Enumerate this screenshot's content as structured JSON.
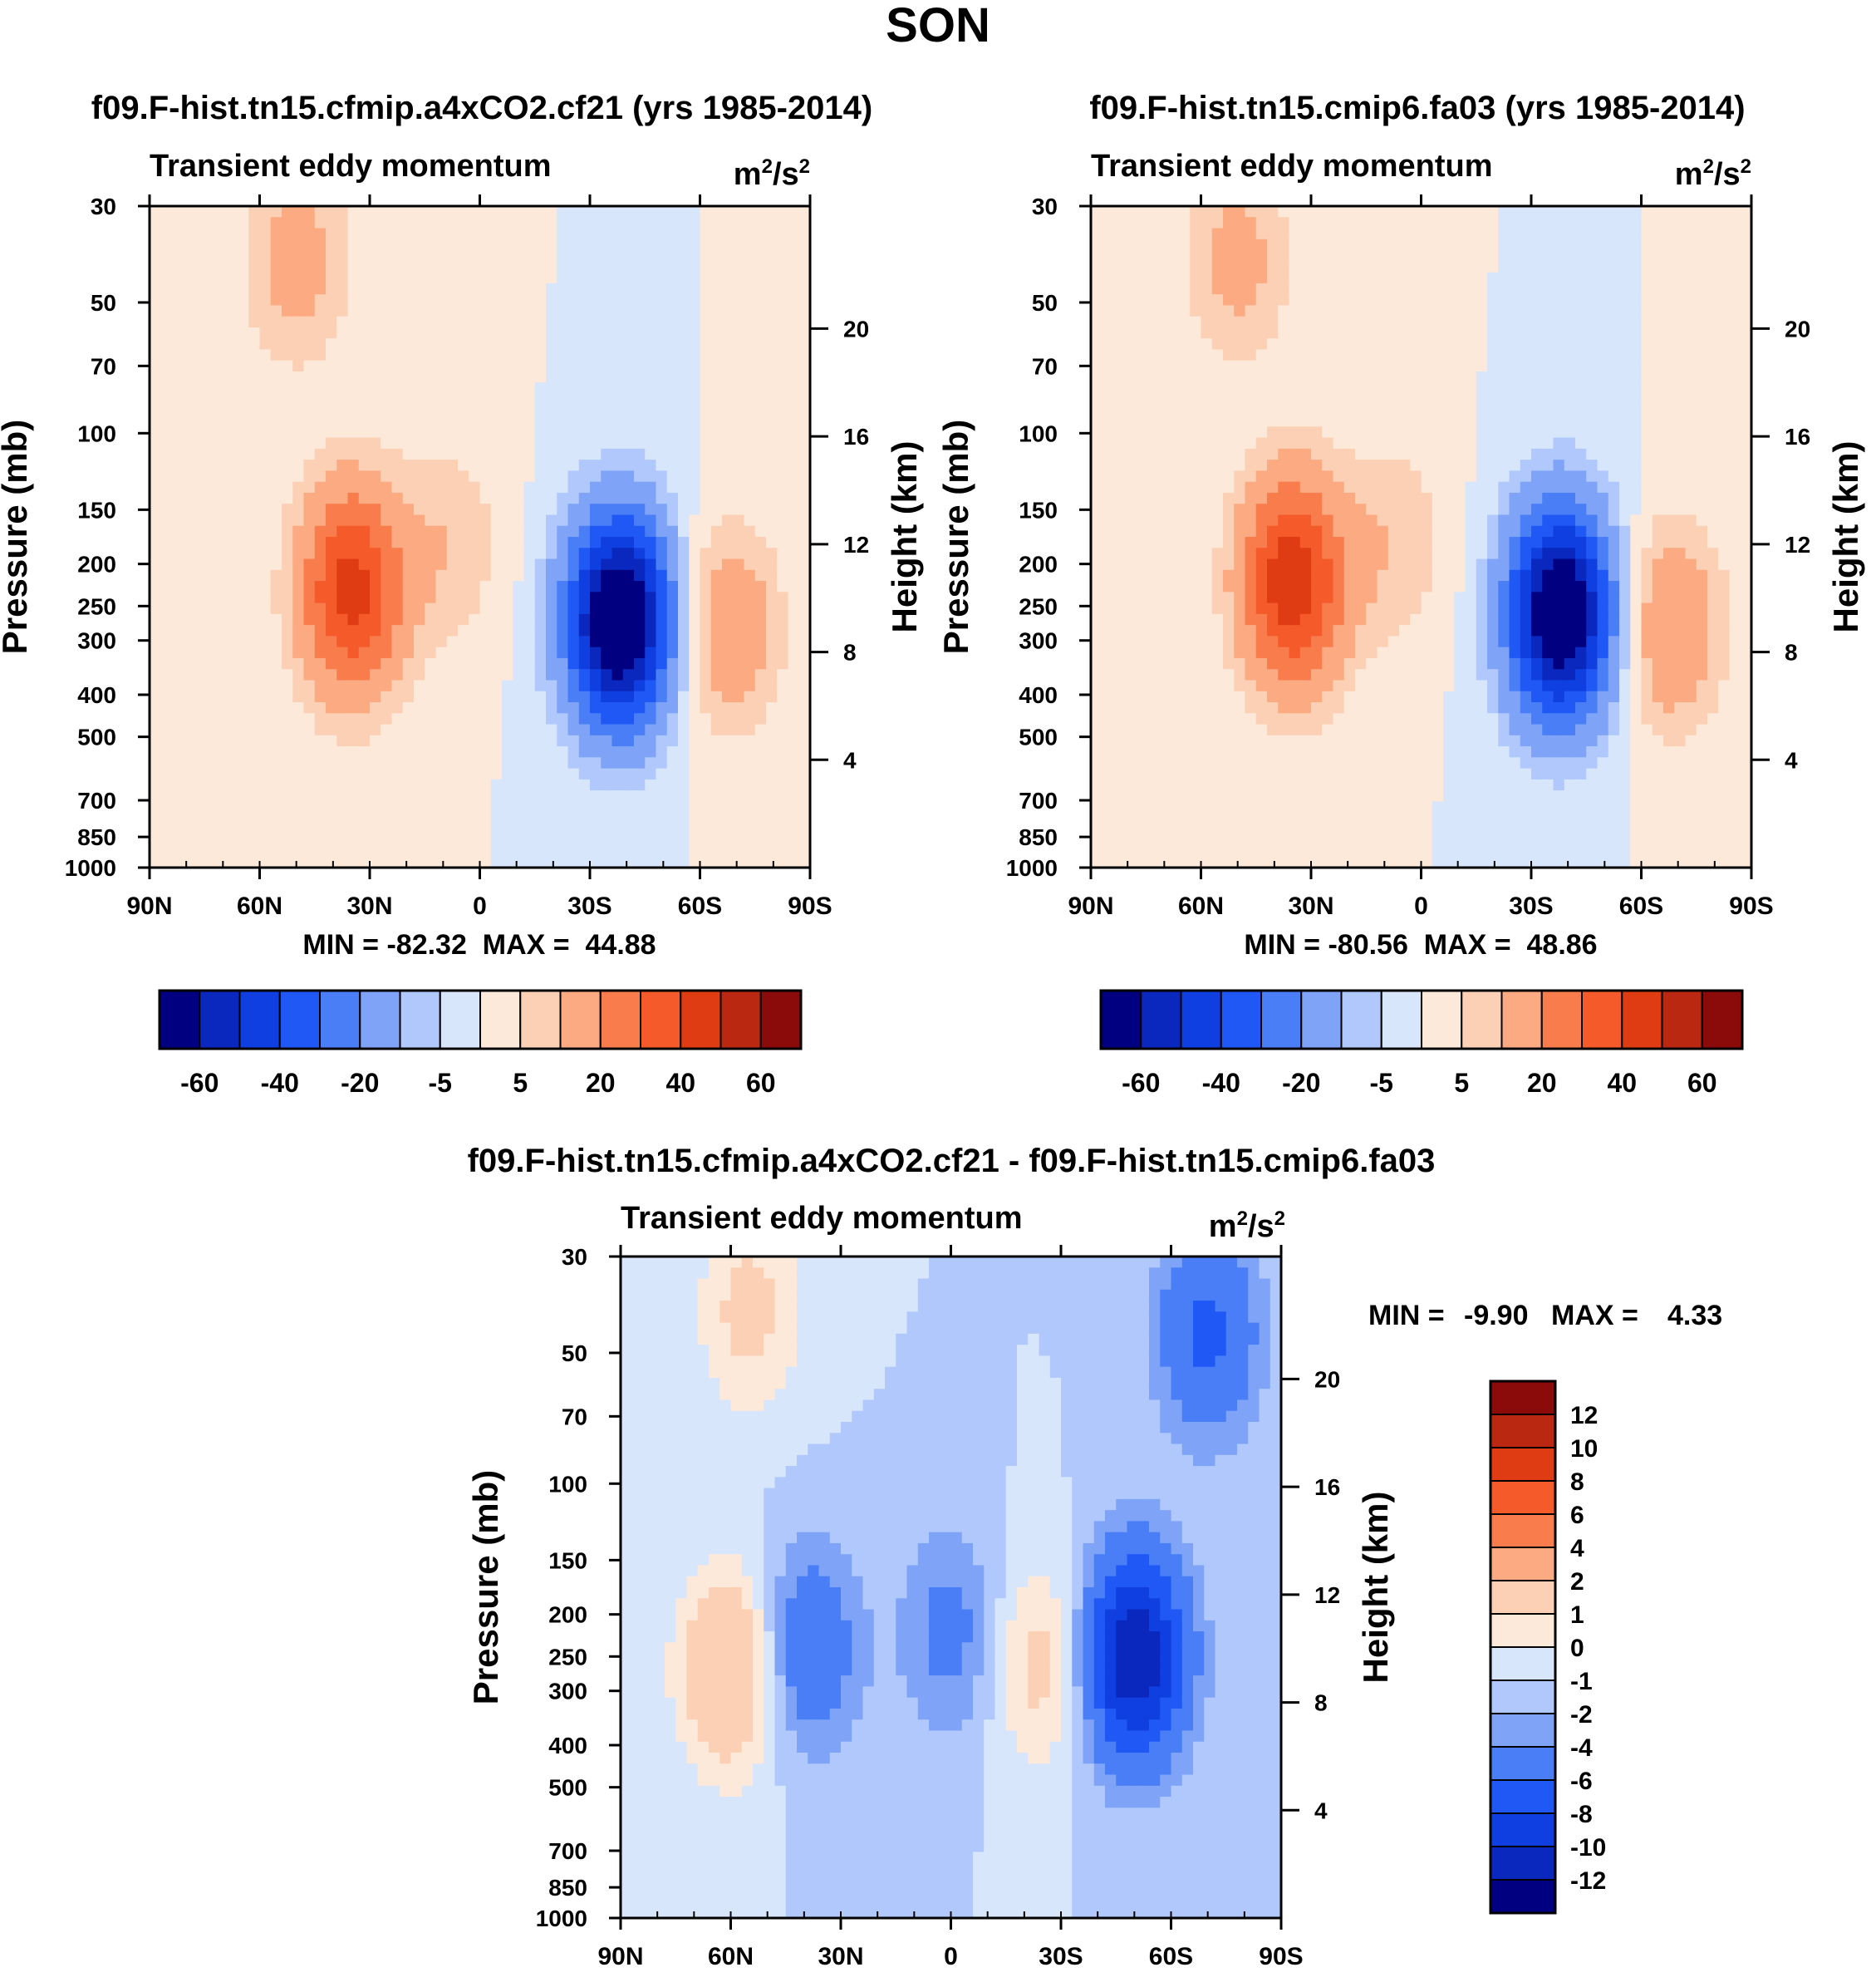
{
  "figure": {
    "title": "SON"
  },
  "colors": {
    "abs_levels": [
      "#000080",
      "#0a28bd",
      "#0f3fe0",
      "#2058f5",
      "#4a7ef7",
      "#7fa4f7",
      "#b0c8fb",
      "#d8e6fc",
      "#fde9da",
      "#fcd0b4",
      "#fbaa82",
      "#f97c4d",
      "#f55a2a",
      "#e03c13",
      "#bb2811",
      "#8b0a0a"
    ],
    "diff_levels": [
      "#000080",
      "#0a28bd",
      "#0f3fe0",
      "#2058f5",
      "#4a7ef7",
      "#7fa4f7",
      "#b0c8fb",
      "#d8e6fc",
      "#fde9da",
      "#fcd0b4",
      "#fbaa82",
      "#f97c4d",
      "#f55a2a",
      "#e03c13",
      "#bb2811",
      "#8b0a0a"
    ]
  },
  "chart_data": [
    {
      "type": "heatmap",
      "panel": "left",
      "title": "f09.F-hist.tn15.cfmip.a4xCO2.cf21 (yrs 1985-2014)",
      "subtitle": "Transient eddy momentum",
      "units_base": "m",
      "units_exp1": "2",
      "units_mid": "/s",
      "units_exp2": "2",
      "ylabel": "Pressure (mb)",
      "y2label": "Height (km)",
      "x_ticks": [
        "90N",
        "60N",
        "30N",
        "0",
        "30S",
        "60S",
        "90S"
      ],
      "x_tick_values": [
        90,
        60,
        30,
        0,
        -30,
        -60,
        -90
      ],
      "y_ticks": [
        "30",
        "50",
        "70",
        "100",
        "150",
        "200",
        "250",
        "300",
        "400",
        "500",
        "700",
        "850",
        "1000"
      ],
      "y_tick_values": [
        30,
        50,
        70,
        100,
        150,
        200,
        250,
        300,
        400,
        500,
        700,
        850,
        1000
      ],
      "y2_ticks": [
        "20",
        "16",
        "12",
        "8",
        "4"
      ],
      "y2_tick_values": [
        20,
        16,
        12,
        8,
        4
      ],
      "ylim": [
        1000,
        30
      ],
      "xlim": [
        90,
        -90
      ],
      "stats": "MIN = -82.32  MAX =  44.88",
      "min": -82.32,
      "max": 44.88,
      "colorbar_orientation": "horizontal",
      "colorbar_labels": [
        "-60",
        "-40",
        "-20",
        "-5",
        "5",
        "20",
        "40",
        "60"
      ],
      "levels": [
        -70,
        -60,
        -50,
        -40,
        -30,
        -20,
        -10,
        -5,
        0,
        5,
        10,
        20,
        30,
        40,
        50,
        60,
        70
      ],
      "features": [
        {
          "lat": 35,
          "p": 230,
          "value": 44
        },
        {
          "lat": 50,
          "p": 40,
          "value": 14
        },
        {
          "lat": 8,
          "p": 180,
          "value": 9
        },
        {
          "lat": -38,
          "p": 270,
          "value": -80
        },
        {
          "lat": -68,
          "p": 280,
          "value": 17
        }
      ]
    },
    {
      "type": "heatmap",
      "panel": "right",
      "title": "f09.F-hist.tn15.cmip6.fa03 (yrs 1985-2014)",
      "subtitle": "Transient eddy momentum",
      "units_base": "m",
      "units_exp1": "2",
      "units_mid": "/s",
      "units_exp2": "2",
      "ylabel": "Pressure (mb)",
      "y2label": "Height (km)",
      "x_ticks": [
        "90N",
        "60N",
        "30N",
        "0",
        "30S",
        "60S",
        "90S"
      ],
      "x_tick_values": [
        90,
        60,
        30,
        0,
        -30,
        -60,
        -90
      ],
      "y_ticks": [
        "30",
        "50",
        "70",
        "100",
        "150",
        "200",
        "250",
        "300",
        "400",
        "500",
        "700",
        "850",
        "1000"
      ],
      "y_tick_values": [
        30,
        50,
        70,
        100,
        150,
        200,
        250,
        300,
        400,
        500,
        700,
        850,
        1000
      ],
      "y2_ticks": [
        "20",
        "16",
        "12",
        "8",
        "4"
      ],
      "y2_tick_values": [
        20,
        16,
        12,
        8,
        4
      ],
      "ylim": [
        1000,
        30
      ],
      "xlim": [
        90,
        -90
      ],
      "stats": "MIN = -80.56  MAX =  48.86",
      "min": -80.56,
      "max": 48.86,
      "colorbar_orientation": "horizontal",
      "colorbar_labels": [
        "-60",
        "-40",
        "-20",
        "-5",
        "5",
        "20",
        "40",
        "60"
      ],
      "levels": [
        -70,
        -60,
        -50,
        -40,
        -30,
        -20,
        -10,
        -5,
        0,
        5,
        10,
        20,
        30,
        40,
        50,
        60,
        70
      ],
      "features": [
        {
          "lat": 35,
          "p": 220,
          "value": 48
        },
        {
          "lat": 50,
          "p": 40,
          "value": 13
        },
        {
          "lat": 7,
          "p": 180,
          "value": 9
        },
        {
          "lat": -38,
          "p": 260,
          "value": -78
        },
        {
          "lat": -68,
          "p": 280,
          "value": 19
        }
      ]
    },
    {
      "type": "heatmap",
      "panel": "difference",
      "title": "f09.F-hist.tn15.cfmip.a4xCO2.cf21 - f09.F-hist.tn15.cmip6.fa03",
      "subtitle": "Transient eddy momentum",
      "units_base": "m",
      "units_exp1": "2",
      "units_mid": "/s",
      "units_exp2": "2",
      "ylabel": "Pressure (mb)",
      "y2label": "Height (km)",
      "x_ticks": [
        "90N",
        "60N",
        "30N",
        "0",
        "30S",
        "60S",
        "90S"
      ],
      "x_tick_values": [
        90,
        60,
        30,
        0,
        -30,
        -60,
        -90
      ],
      "y_ticks": [
        "30",
        "50",
        "70",
        "100",
        "150",
        "200",
        "250",
        "300",
        "400",
        "500",
        "700",
        "850",
        "1000"
      ],
      "y_tick_values": [
        30,
        50,
        70,
        100,
        150,
        200,
        250,
        300,
        400,
        500,
        700,
        850,
        1000
      ],
      "y2_ticks": [
        "20",
        "16",
        "12",
        "8",
        "4"
      ],
      "y2_tick_values": [
        20,
        16,
        12,
        8,
        4
      ],
      "ylim": [
        1000,
        30
      ],
      "xlim": [
        90,
        -90
      ],
      "stats_min_label": "MIN =",
      "stats_min_value": "-9.90",
      "stats_max_label": "MAX =",
      "stats_max_value": "4.33",
      "min": -9.9,
      "max": 4.33,
      "colorbar_orientation": "vertical",
      "colorbar_labels": [
        "12",
        "10",
        "8",
        "6",
        "4",
        "2",
        "1",
        "0",
        "-1",
        "-2",
        "-4",
        "-6",
        "-8",
        "-10",
        "-12"
      ],
      "levels": [
        -12,
        -10,
        -8,
        -6,
        -4,
        -2,
        -1,
        0,
        1,
        2,
        4,
        6,
        8,
        10,
        12
      ],
      "features": [
        {
          "lat": 60,
          "p": 270,
          "value": 4.3
        },
        {
          "lat": 55,
          "p": 40,
          "value": 2.5
        },
        {
          "lat": 39,
          "p": 240,
          "value": -3.8
        },
        {
          "lat": 0,
          "p": 220,
          "value": -2.6
        },
        {
          "lat": -25,
          "p": 260,
          "value": 2.8
        },
        {
          "lat": -50,
          "p": 250,
          "value": -9.9
        },
        {
          "lat": -70,
          "p": 45,
          "value": -4.5
        }
      ]
    }
  ]
}
